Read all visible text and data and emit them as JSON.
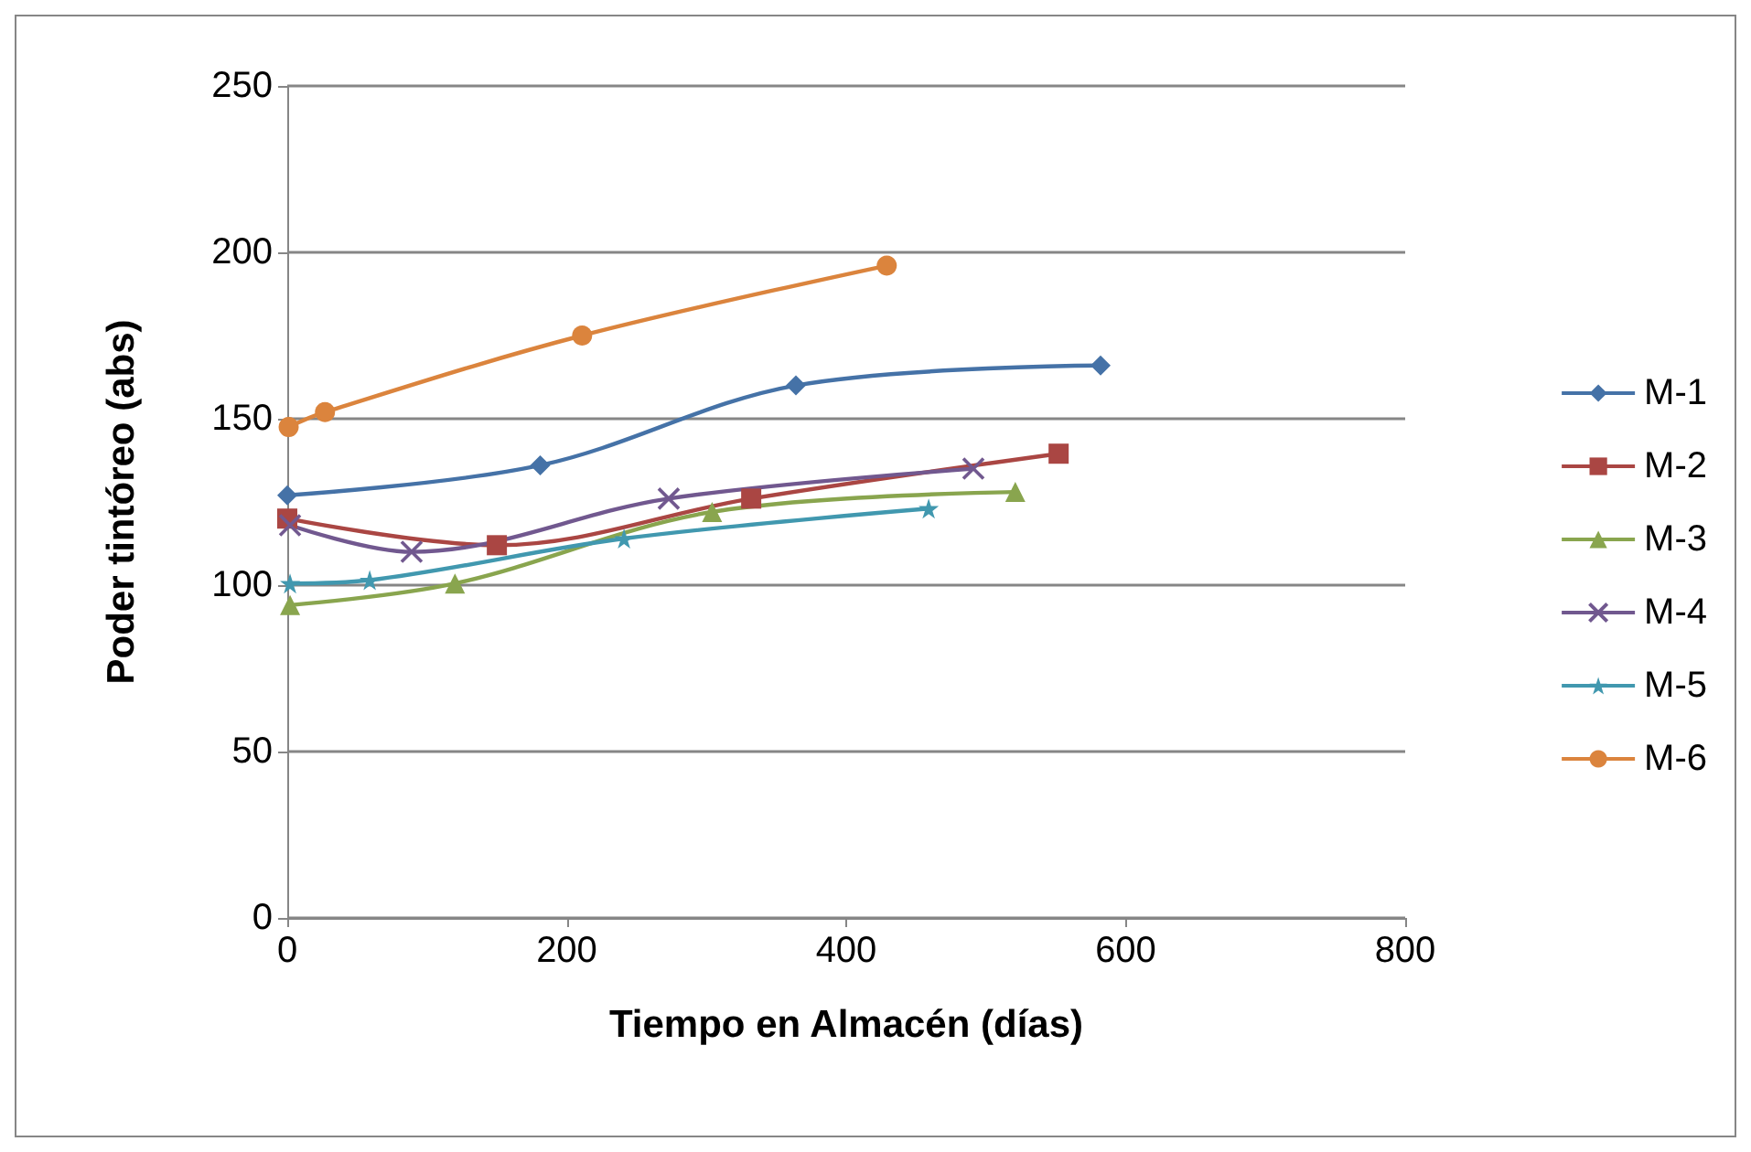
{
  "chart_data": {
    "type": "line",
    "xlabel": "Tiempo en Almacén (días)",
    "ylabel": "Poder tintóreo (abs)",
    "xlim": [
      0,
      800
    ],
    "xticks": [
      0,
      200,
      400,
      600,
      800
    ],
    "ylim": [
      0,
      250
    ],
    "yticks": [
      0,
      50,
      100,
      150,
      200,
      250
    ],
    "grid": "y",
    "legend": "right",
    "series": [
      {
        "name": "M-1",
        "color": "#4572a7",
        "marker": "diamond",
        "x": [
          0,
          181,
          364,
          582
        ],
        "values": [
          127,
          136,
          160,
          166
        ]
      },
      {
        "name": "M-2",
        "color": "#aa4643",
        "marker": "square",
        "x": [
          0,
          150,
          332,
          552
        ],
        "values": [
          120,
          112,
          126,
          139.5
        ]
      },
      {
        "name": "M-3",
        "color": "#89a54e",
        "marker": "triangle",
        "x": [
          2,
          120,
          304,
          521
        ],
        "values": [
          94,
          100.5,
          122,
          128
        ]
      },
      {
        "name": "M-4",
        "color": "#71588f",
        "marker": "cross",
        "x": [
          2,
          89,
          273,
          491
        ],
        "values": [
          118,
          110,
          126,
          135
        ]
      },
      {
        "name": "M-5",
        "color": "#4198af",
        "marker": "star",
        "x": [
          2,
          59,
          241,
          459
        ],
        "values": [
          100.5,
          101.5,
          114,
          123
        ]
      },
      {
        "name": "M-6",
        "color": "#db843d",
        "marker": "circle",
        "x": [
          1,
          27,
          211,
          429
        ],
        "values": [
          147.5,
          152,
          175,
          196
        ]
      }
    ]
  }
}
